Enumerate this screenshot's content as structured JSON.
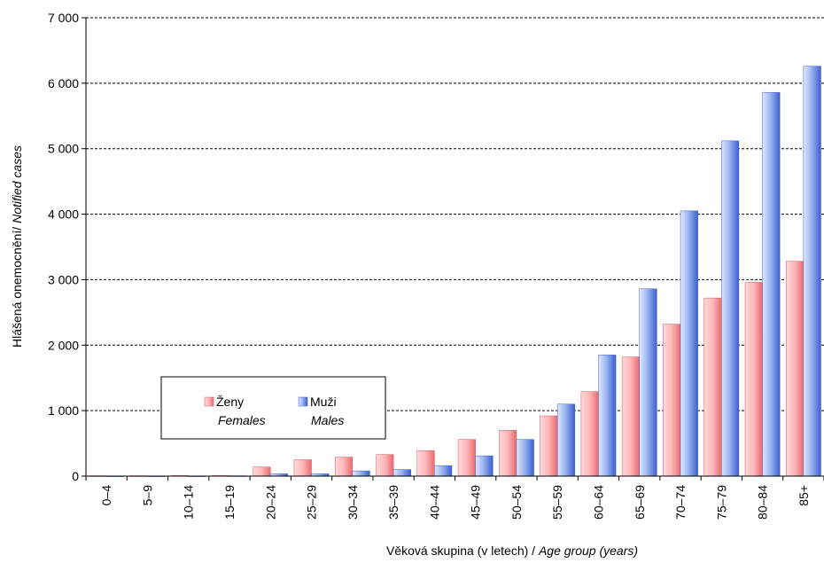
{
  "chart_data": {
    "type": "bar",
    "categories": [
      "0–4",
      "5–9",
      "10–14",
      "15–19",
      "20–24",
      "25–29",
      "30–34",
      "35–39",
      "40–44",
      "45–49",
      "50–54",
      "55–59",
      "60–64",
      "65–69",
      "70–74",
      "75–79",
      "80–84",
      "85+"
    ],
    "series": [
      {
        "name": "Ženy",
        "name_en": "Females",
        "color": "#f2888c",
        "values": [
          5,
          5,
          8,
          8,
          140,
          250,
          290,
          330,
          390,
          560,
          700,
          920,
          1290,
          1820,
          2320,
          2720,
          2960,
          3280
        ]
      },
      {
        "name": "Muži",
        "name_en": "Males",
        "color": "#4f70d8",
        "values": [
          3,
          3,
          3,
          5,
          35,
          35,
          80,
          100,
          160,
          310,
          560,
          1100,
          1850,
          2860,
          4050,
          5120,
          5860,
          6260
        ]
      }
    ],
    "ylim": [
      0,
      7000
    ],
    "yticks": [
      0,
      1000,
      2000,
      3000,
      4000,
      5000,
      6000,
      7000
    ],
    "ytick_labels": [
      "0",
      "1 000",
      "2 000",
      "3 000",
      "4 000",
      "5 000",
      "6 000",
      "7 000"
    ],
    "ylabel_cz": "Hlášená onemocnění/",
    "ylabel_en": "Notified cases",
    "xlabel_cz": "Věková skupina (v letech) / ",
    "xlabel_en": "Age group (years)",
    "grid": true,
    "legend_position": "bottom-left"
  }
}
